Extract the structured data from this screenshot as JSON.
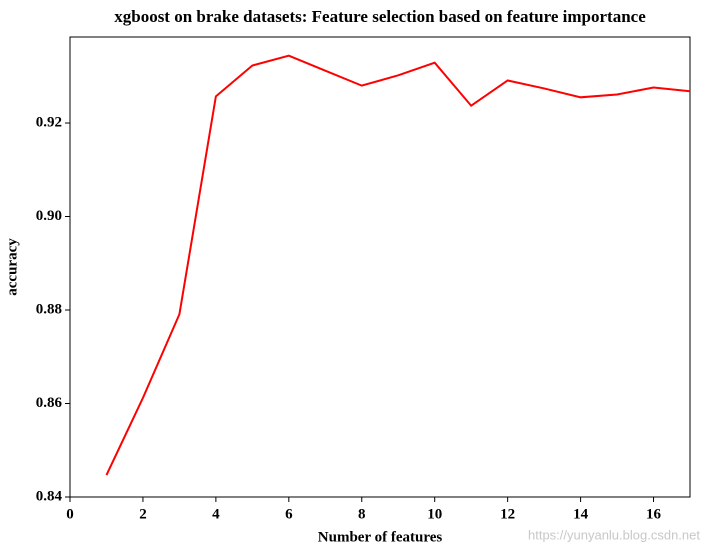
{
  "chart_data": {
    "type": "line",
    "title": "xgboost on brake datasets: Feature selection based on feature importance",
    "x_label": "Number of features",
    "y_label": "accuracy",
    "watermark": "https://yunyanlu.blog.csdn.net",
    "x": [
      1,
      2,
      3,
      4,
      5,
      6,
      7,
      8,
      9,
      10,
      11,
      12,
      13,
      14,
      15,
      16,
      17
    ],
    "series": [
      {
        "name": "accuracy",
        "color": "#ff0000",
        "values": [
          0.8447,
          0.8612,
          0.8791,
          0.9257,
          0.9323,
          0.9344,
          0.9312,
          0.928,
          0.9302,
          0.9329,
          0.9237,
          0.9291,
          0.9274,
          0.9255,
          0.9261,
          0.9276,
          0.9268
        ]
      }
    ],
    "xlim": [
      0,
      17
    ],
    "ylim": [
      0.84,
      0.9384
    ],
    "xticks": [
      0,
      2,
      4,
      6,
      8,
      10,
      12,
      14,
      16
    ],
    "yticks": [
      0.84,
      0.86,
      0.88,
      {
        "value": 0.9,
        "label": "0.90"
      },
      0.92
    ],
    "grid": false
  }
}
